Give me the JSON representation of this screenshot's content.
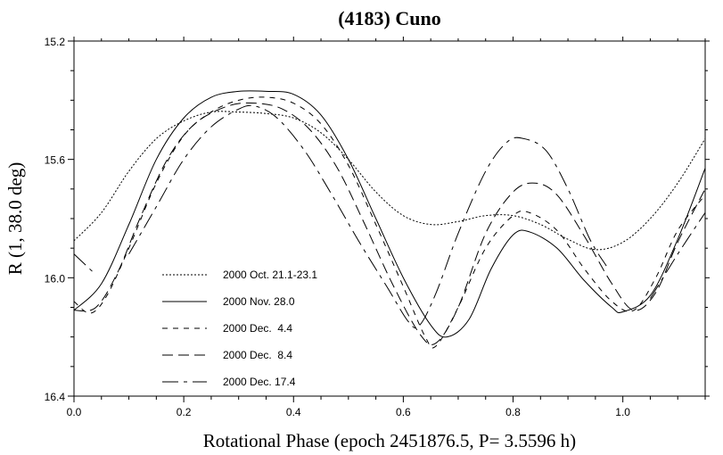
{
  "chart_data": {
    "type": "line",
    "title": "(4183) Cuno",
    "xlabel": "Rotational Phase (epoch 2451876.5, P= 3.5596 h)",
    "ylabel": "R (1, 38.0 deg)",
    "xlim": [
      0.0,
      1.15
    ],
    "ylim": [
      15.2,
      16.4
    ],
    "y_inverted": true,
    "grid": false,
    "legend_placement": "bottom-left",
    "xticks": [
      "0.0",
      "0.2",
      "0.4",
      "0.6",
      "0.8",
      "1.0"
    ],
    "yticks": [
      "15.2",
      "15.6",
      "16.0",
      "16.4"
    ],
    "series": [
      {
        "name": "2000 Oct. 21.1-23.1",
        "dash": "2,2",
        "points": [
          [
            0,
            15.875
          ],
          [
            0.05,
            15.78
          ],
          [
            0.1,
            15.64
          ],
          [
            0.15,
            15.53
          ],
          [
            0.2,
            15.47
          ],
          [
            0.25,
            15.44
          ],
          [
            0.3,
            15.44
          ],
          [
            0.35,
            15.445
          ],
          [
            0.4,
            15.46
          ],
          [
            0.45,
            15.51
          ],
          [
            0.5,
            15.6
          ],
          [
            0.55,
            15.71
          ],
          [
            0.6,
            15.79
          ],
          [
            0.65,
            15.82
          ],
          [
            0.7,
            15.81
          ],
          [
            0.75,
            15.79
          ],
          [
            0.8,
            15.79
          ],
          [
            0.85,
            15.82
          ],
          [
            0.9,
            15.87
          ],
          [
            0.95,
            15.905
          ],
          [
            1.0,
            15.88
          ],
          [
            1.05,
            15.8
          ],
          [
            1.1,
            15.68
          ],
          [
            1.15,
            15.53
          ]
        ]
      },
      {
        "name": "2000 Nov. 28.0",
        "dash": "",
        "points": [
          [
            0,
            16.11
          ],
          [
            0.05,
            16.02
          ],
          [
            0.1,
            15.82
          ],
          [
            0.15,
            15.6
          ],
          [
            0.2,
            15.46
          ],
          [
            0.25,
            15.39
          ],
          [
            0.3,
            15.37
          ],
          [
            0.35,
            15.37
          ],
          [
            0.4,
            15.38
          ],
          [
            0.45,
            15.45
          ],
          [
            0.5,
            15.6
          ],
          [
            0.55,
            15.8
          ],
          [
            0.6,
            16.0
          ],
          [
            0.65,
            16.16
          ],
          [
            0.68,
            16.2
          ],
          [
            0.72,
            16.14
          ],
          [
            0.76,
            15.97
          ],
          [
            0.8,
            15.855
          ],
          [
            0.83,
            15.845
          ],
          [
            0.88,
            15.9
          ],
          [
            0.93,
            16.01
          ],
          [
            0.98,
            16.1
          ],
          [
            1.0,
            16.115
          ],
          [
            1.05,
            16.06
          ],
          [
            1.1,
            15.87
          ],
          [
            1.15,
            15.63
          ]
        ]
      },
      {
        "name": "2000 Dec.  4.4",
        "dash": "6,6",
        "points": [
          [
            0,
            16.08
          ],
          [
            0.03,
            16.12
          ],
          [
            0.06,
            16.06
          ],
          [
            0.1,
            15.9
          ],
          [
            0.15,
            15.68
          ],
          [
            0.2,
            15.52
          ],
          [
            0.25,
            15.44
          ],
          [
            0.3,
            15.4
          ],
          [
            0.35,
            15.39
          ],
          [
            0.4,
            15.41
          ],
          [
            0.45,
            15.48
          ],
          [
            0.5,
            15.62
          ],
          [
            0.55,
            15.82
          ],
          [
            0.6,
            16.03
          ],
          [
            0.64,
            16.2
          ],
          [
            0.66,
            16.23
          ],
          [
            0.7,
            16.1
          ],
          [
            0.75,
            15.9
          ],
          [
            0.8,
            15.79
          ],
          [
            0.83,
            15.78
          ],
          [
            0.88,
            15.84
          ],
          [
            0.93,
            15.97
          ],
          [
            0.98,
            16.08
          ],
          [
            1.02,
            16.11
          ],
          [
            1.06,
            16.0
          ],
          [
            1.1,
            15.84
          ],
          [
            1.15,
            15.72
          ]
        ]
      },
      {
        "name": "2000 Dec.  8.4",
        "dash": "12,6",
        "points": [
          [
            0,
            16.11
          ],
          [
            0.04,
            16.1
          ],
          [
            0.08,
            15.98
          ],
          [
            0.12,
            15.8
          ],
          [
            0.17,
            15.6
          ],
          [
            0.22,
            15.48
          ],
          [
            0.28,
            15.42
          ],
          [
            0.33,
            15.41
          ],
          [
            0.38,
            15.43
          ],
          [
            0.43,
            15.5
          ],
          [
            0.48,
            15.63
          ],
          [
            0.53,
            15.82
          ],
          [
            0.58,
            16.02
          ],
          [
            0.63,
            16.19
          ],
          [
            0.66,
            16.22
          ],
          [
            0.7,
            16.1
          ],
          [
            0.75,
            15.85
          ],
          [
            0.8,
            15.71
          ],
          [
            0.84,
            15.68
          ],
          [
            0.88,
            15.72
          ],
          [
            0.93,
            15.86
          ],
          [
            0.98,
            16.02
          ],
          [
            1.02,
            16.11
          ],
          [
            1.06,
            16.05
          ],
          [
            1.1,
            15.88
          ],
          [
            1.15,
            15.7
          ]
        ]
      },
      {
        "name": "2000 Dec. 17.4",
        "dash": "18,6,4,6",
        "points": [
          [
            0,
            15.92
          ],
          [
            0.04,
            15.99
          ],
          null,
          [
            0.1,
            15.92
          ],
          [
            0.15,
            15.76
          ],
          [
            0.2,
            15.6
          ],
          [
            0.25,
            15.49
          ],
          [
            0.3,
            15.43
          ],
          [
            0.33,
            15.42
          ],
          [
            0.37,
            15.46
          ],
          [
            0.42,
            15.57
          ],
          [
            0.47,
            15.72
          ],
          [
            0.52,
            15.88
          ],
          [
            0.57,
            16.03
          ],
          [
            0.61,
            16.15
          ],
          [
            0.63,
            16.16
          ],
          [
            0.66,
            16.05
          ],
          [
            0.7,
            15.85
          ],
          [
            0.75,
            15.64
          ],
          [
            0.79,
            15.54
          ],
          [
            0.82,
            15.53
          ],
          [
            0.86,
            15.57
          ],
          [
            0.9,
            15.7
          ],
          [
            0.94,
            15.87
          ],
          [
            0.97,
            15.96
          ],
          null,
          [
            1.05,
            16.07
          ],
          [
            1.1,
            15.92
          ],
          [
            1.15,
            15.78
          ]
        ]
      }
    ]
  }
}
